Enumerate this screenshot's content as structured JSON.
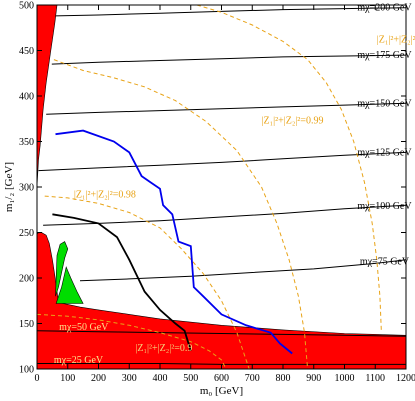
{
  "chart_data": {
    "type": "line",
    "title": "",
    "xlabel": "m₀ [GeV]",
    "ylabel": "m₁/₂ [GeV]",
    "xlim": [
      0,
      1200
    ],
    "ylim": [
      100,
      500
    ],
    "xticks": [
      0,
      100,
      200,
      300,
      400,
      500,
      600,
      700,
      800,
      900,
      1000,
      1100,
      1200
    ],
    "yticks": [
      100,
      150,
      200,
      250,
      300,
      350,
      400,
      450,
      500
    ],
    "grid": false,
    "colors": {
      "excluded": "#ff0000",
      "allowed_region": "#00dd00",
      "mass_contour": "#000000",
      "gaugino_contour": "#e8a317",
      "blue_curve": "#0000ee",
      "black_curve": "#000000"
    },
    "regions": [
      {
        "id": "excluded-upper-left",
        "color": "#ff0000",
        "points": [
          [
            0,
            300
          ],
          [
            5,
            330
          ],
          [
            10,
            345
          ],
          [
            15,
            365
          ],
          [
            20,
            385
          ],
          [
            30,
            415
          ],
          [
            45,
            450
          ],
          [
            58,
            480
          ],
          [
            65,
            500
          ],
          [
            0,
            500
          ]
        ]
      },
      {
        "id": "excluded-bottom",
        "color": "#ff0000",
        "points": [
          [
            0,
            100
          ],
          [
            1200,
            100
          ],
          [
            1200,
            137
          ],
          [
            1000,
            139
          ],
          [
            800,
            143
          ],
          [
            600,
            148
          ],
          [
            400,
            155
          ],
          [
            300,
            160
          ],
          [
            200,
            165
          ],
          [
            140,
            168
          ],
          [
            100,
            171
          ],
          [
            70,
            173
          ],
          [
            65,
            185
          ],
          [
            57,
            205
          ],
          [
            50,
            220
          ],
          [
            40,
            238
          ],
          [
            30,
            247
          ],
          [
            15,
            250
          ],
          [
            5,
            250
          ],
          [
            0,
            248
          ]
        ]
      },
      {
        "id": "allowed-green-upper",
        "color": "#00dd00",
        "points": [
          [
            60,
            180
          ],
          [
            65,
            225
          ],
          [
            75,
            237
          ],
          [
            90,
            240
          ],
          [
            100,
            232
          ],
          [
            90,
            222
          ],
          [
            70,
            190
          ]
        ]
      },
      {
        "id": "allowed-green-lower",
        "color": "#00dd00",
        "points": [
          [
            62,
            172
          ],
          [
            80,
            190
          ],
          [
            95,
            212
          ],
          [
            110,
            200
          ],
          [
            130,
            185
          ],
          [
            150,
            172
          ]
        ]
      }
    ],
    "series": [
      {
        "id": "mchi-200",
        "label": "mχ=200 GeV",
        "color": "#000000",
        "points": [
          [
            60,
            488
          ],
          [
            200,
            489
          ],
          [
            400,
            491
          ],
          [
            600,
            493
          ],
          [
            800,
            495
          ],
          [
            1000,
            496
          ],
          [
            1200,
            497
          ]
        ],
        "label_at": [
          1130,
          497
        ]
      },
      {
        "id": "mchi-175",
        "label": "mχ=175 GeV",
        "color": "#000000",
        "points": [
          [
            48,
            435
          ],
          [
            200,
            437
          ],
          [
            400,
            439
          ],
          [
            600,
            441
          ],
          [
            800,
            443
          ],
          [
            1000,
            444
          ],
          [
            1200,
            445
          ]
        ],
        "label_at": [
          1130,
          445
        ]
      },
      {
        "id": "mchi-150",
        "label": "mχ=150 GeV",
        "color": "#000000",
        "points": [
          [
            30,
            380
          ],
          [
            200,
            382
          ],
          [
            400,
            384
          ],
          [
            600,
            386
          ],
          [
            800,
            388
          ],
          [
            1000,
            390
          ],
          [
            1200,
            392
          ]
        ],
        "label_at": [
          1130,
          392
        ]
      },
      {
        "id": "mchi-125",
        "label": "mχ=125 GeV",
        "color": "#000000",
        "points": [
          [
            5,
            318
          ],
          [
            200,
            321
          ],
          [
            400,
            324
          ],
          [
            600,
            327
          ],
          [
            800,
            331
          ],
          [
            1000,
            335
          ],
          [
            1200,
            338
          ]
        ],
        "label_at": [
          1130,
          338
        ]
      },
      {
        "id": "mchi-100",
        "label": "mχ=100 GeV",
        "color": "#000000",
        "points": [
          [
            20,
            258
          ],
          [
            200,
            260
          ],
          [
            400,
            263
          ],
          [
            600,
            267
          ],
          [
            800,
            271
          ],
          [
            1000,
            276
          ],
          [
            1200,
            280
          ]
        ],
        "label_at": [
          1130,
          279
        ]
      },
      {
        "id": "mchi-75",
        "label": "mχ=75 GeV",
        "color": "#000000",
        "points": [
          [
            140,
            197
          ],
          [
            300,
            199
          ],
          [
            500,
            202
          ],
          [
            700,
            206
          ],
          [
            900,
            210
          ],
          [
            1100,
            216
          ],
          [
            1200,
            220
          ]
        ],
        "label_at": [
          1130,
          218
        ]
      },
      {
        "id": "mchi-50",
        "label": "mχ=50 GeV",
        "color": "#000000",
        "points": [
          [
            0,
            142
          ],
          [
            200,
            141
          ],
          [
            400,
            140
          ],
          [
            600,
            139
          ],
          [
            800,
            138
          ],
          [
            1000,
            137
          ],
          [
            1200,
            136
          ]
        ],
        "label_at": [
          72,
          146
        ]
      },
      {
        "id": "mchi-25",
        "label": "mχ=25 GeV",
        "color": "#000000",
        "points": [
          [
            0,
            106
          ],
          [
            200,
            106
          ],
          [
            400,
            106
          ],
          [
            600,
            105
          ],
          [
            800,
            105
          ],
          [
            1000,
            105
          ],
          [
            1200,
            105
          ]
        ],
        "label_at": [
          55,
          110
        ]
      },
      {
        "id": "z-0995",
        "label": "|Z₁|²+|Z₂|²=0.995",
        "color": "#e8a317",
        "dashed": true,
        "points": [
          [
            520,
            500
          ],
          [
            600,
            492
          ],
          [
            700,
            478
          ],
          [
            800,
            460
          ],
          [
            880,
            440
          ],
          [
            940,
            415
          ],
          [
            990,
            385
          ],
          [
            1030,
            350
          ],
          [
            1065,
            305
          ],
          [
            1090,
            260
          ],
          [
            1105,
            220
          ],
          [
            1115,
            180
          ],
          [
            1120,
            140
          ]
        ],
        "label_at": [
          1105,
          462
        ]
      },
      {
        "id": "z-099",
        "label": "|Z₁|²+|Z₂|²=0.99",
        "color": "#e8a317",
        "dashed": true,
        "points": [
          [
            55,
            440
          ],
          [
            150,
            428
          ],
          [
            250,
            420
          ],
          [
            350,
            410
          ],
          [
            450,
            395
          ],
          [
            550,
            372
          ],
          [
            650,
            340
          ],
          [
            730,
            300
          ],
          [
            780,
            260
          ],
          [
            820,
            220
          ],
          [
            850,
            180
          ],
          [
            870,
            140
          ],
          [
            880,
            100
          ]
        ],
        "label_at": [
          730,
          373
        ]
      },
      {
        "id": "z-098",
        "label": "|Z₁|²+|Z₂|²=0.98",
        "color": "#e8a317",
        "dashed": true,
        "points": [
          [
            25,
            290
          ],
          [
            100,
            288
          ],
          [
            200,
            282
          ],
          [
            300,
            272
          ],
          [
            400,
            255
          ],
          [
            470,
            232
          ],
          [
            540,
            205
          ],
          [
            600,
            175
          ],
          [
            650,
            140
          ],
          [
            680,
            110
          ],
          [
            690,
            100
          ]
        ],
        "label_at": [
          120,
          292
        ]
      },
      {
        "id": "z-09",
        "label": "|Z₁|²+|Z₂|²=0.9",
        "color": "#e8a317",
        "dashed": true,
        "points": [
          [
            0,
            160
          ],
          [
            100,
            158
          ],
          [
            200,
            154
          ],
          [
            300,
            148
          ],
          [
            400,
            140
          ],
          [
            500,
            130
          ],
          [
            560,
            120
          ],
          [
            600,
            110
          ],
          [
            615,
            100
          ]
        ],
        "label_at": [
          320,
          123
        ]
      },
      {
        "id": "blue-curve",
        "label": "",
        "color": "#0000ee",
        "points": [
          [
            60,
            358
          ],
          [
            150,
            362
          ],
          [
            250,
            350
          ],
          [
            300,
            338
          ],
          [
            340,
            312
          ],
          [
            370,
            305
          ],
          [
            400,
            298
          ],
          [
            410,
            280
          ],
          [
            440,
            270
          ],
          [
            460,
            240
          ],
          [
            500,
            235
          ],
          [
            510,
            190
          ],
          [
            540,
            180
          ],
          [
            600,
            160
          ],
          [
            680,
            148
          ],
          [
            760,
            140
          ],
          [
            790,
            128
          ],
          [
            830,
            117
          ]
        ],
        "label_at": null
      },
      {
        "id": "black-curve",
        "label": "",
        "color": "#000000",
        "points": [
          [
            50,
            270
          ],
          [
            120,
            266
          ],
          [
            200,
            260
          ],
          [
            260,
            245
          ],
          [
            300,
            220
          ],
          [
            350,
            185
          ],
          [
            400,
            165
          ],
          [
            450,
            150
          ],
          [
            480,
            142
          ],
          [
            500,
            120
          ]
        ],
        "label_at": null
      }
    ]
  }
}
